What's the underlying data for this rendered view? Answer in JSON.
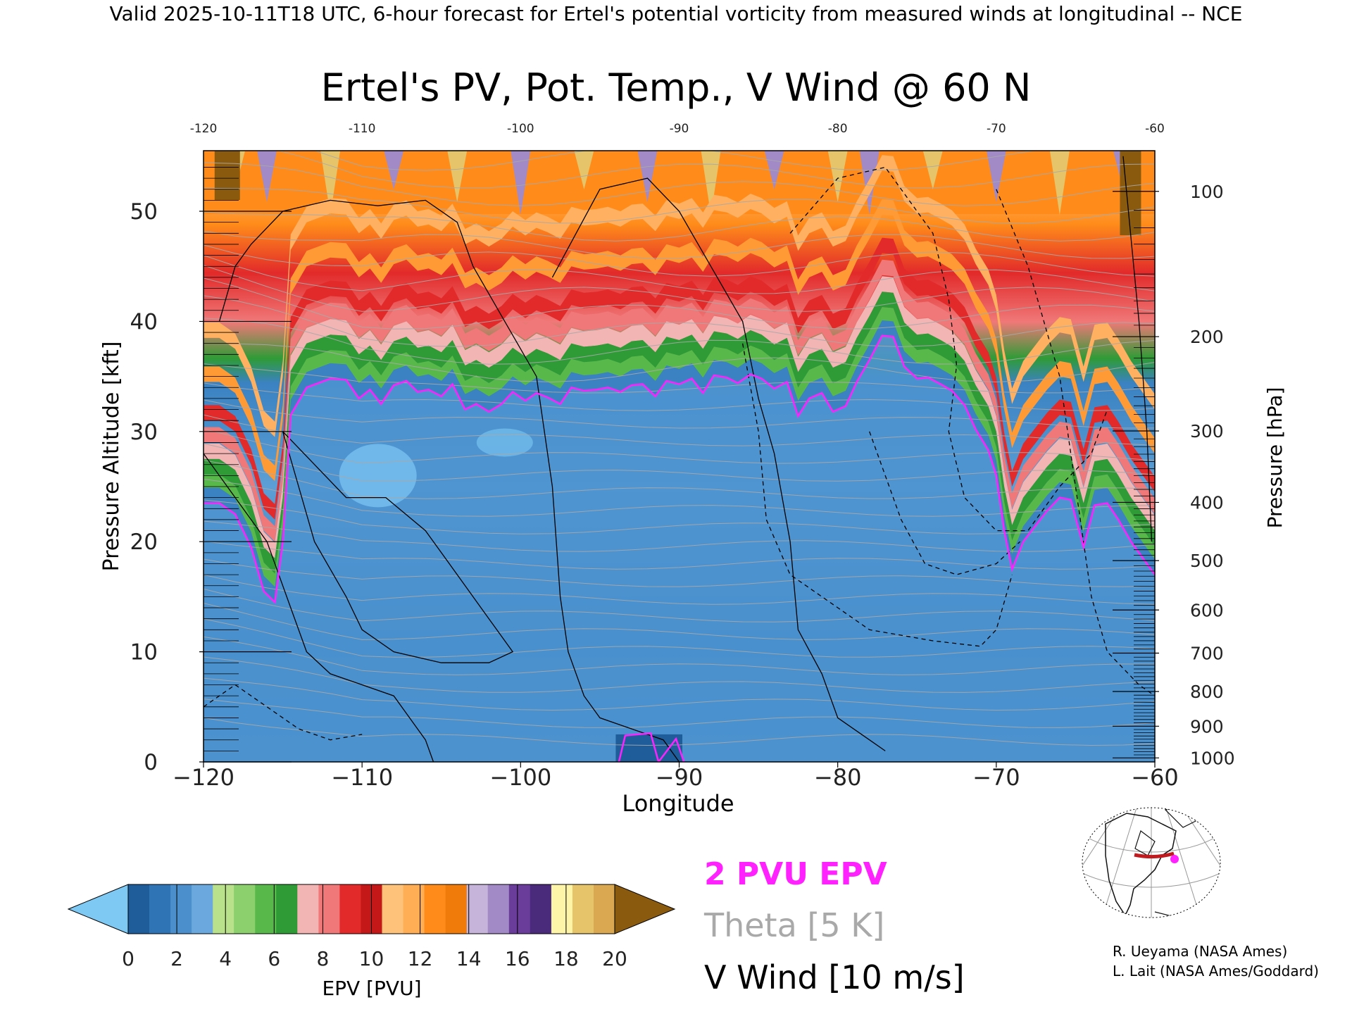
{
  "header": {
    "valid_line": "Valid 2025-10-11T18 UTC, 6-hour forecast for Ertel's potential vorticity from measured winds at longitudinal -- NCE"
  },
  "chart_data": {
    "type": "heatmap",
    "title": "Ertel's PV, Pot. Temp., V Wind @ 60 N",
    "xlabel": "Longitude",
    "ylabel": "Pressure Altitude [kft]",
    "y2label": "Pressure [hPa]",
    "x_ticks": [
      "−120",
      "−110",
      "−100",
      "−90",
      "−80",
      "−70",
      "−60"
    ],
    "x_tick_values": [
      -120,
      -110,
      -100,
      -90,
      -80,
      -70,
      -60
    ],
    "x_top_ticks": [
      "-120",
      "-110",
      "-100",
      "-90",
      "-80",
      "-70",
      "-60"
    ],
    "y_ticks": [
      "0",
      "10",
      "20",
      "30",
      "40",
      "50"
    ],
    "y_tick_values": [
      0,
      10,
      20,
      30,
      40,
      50
    ],
    "pressure_ticks": [
      "100",
      "200",
      "300",
      "400",
      "500",
      "600",
      "700",
      "800",
      "900",
      "1000"
    ],
    "pressure_tick_values": [
      100,
      200,
      300,
      400,
      500,
      600,
      700,
      800,
      900,
      1000
    ],
    "xlim": [
      -120,
      -60
    ],
    "ylim": [
      0,
      55.5
    ],
    "tropopause_2pvu_kft": {
      "x": [
        -120,
        -119,
        -118,
        -117,
        -116.2,
        -115.5,
        -115,
        -114.5,
        -113.5,
        -112,
        -111,
        -110.2,
        -109.5,
        -108.8,
        -108,
        -107.2,
        -106.5,
        -105.8,
        -105,
        -104.3,
        -103.5,
        -102.8,
        -102,
        -101.2,
        -100.5,
        -99.7,
        -99,
        -98.3,
        -97.5,
        -96.8,
        -96,
        -95.2,
        -94.5,
        -93.7,
        -93,
        -92.3,
        -91.5,
        -90.8,
        -90,
        -89.2,
        -88.5,
        -87.8,
        -87,
        -86.3,
        -85.5,
        -84.8,
        -84,
        -83.2,
        -82.5,
        -81.8,
        -81,
        -80.3,
        -79.5,
        -78.8,
        -78,
        -77.2,
        -76.5,
        -75.8,
        -75,
        -74.3,
        -73.5,
        -72.8,
        -72,
        -71.3,
        -70.5,
        -70,
        -69.5,
        -69,
        -68.3,
        -67.5,
        -66.8,
        -66,
        -65.3,
        -64.5,
        -63.8,
        -63,
        -62.3,
        -61.5,
        -60.8,
        -60
      ],
      "y": [
        23.5,
        23.5,
        22.5,
        19.5,
        15.5,
        14.5,
        20,
        31.5,
        34,
        34.8,
        34.7,
        33,
        33.8,
        32.5,
        34.2,
        34.6,
        33.6,
        33.8,
        33.2,
        34.3,
        32,
        32.5,
        31.8,
        32.5,
        33.6,
        32.8,
        33.5,
        33.1,
        32.5,
        34,
        33.7,
        33.8,
        34,
        33.6,
        34.2,
        34.3,
        33.2,
        34.6,
        34.3,
        34.8,
        33.5,
        35.1,
        34.9,
        34.4,
        35.2,
        34.8,
        33.9,
        34.5,
        31.4,
        33,
        33.5,
        31.8,
        32.3,
        34.5,
        36.5,
        38.7,
        38.6,
        35.9,
        34.8,
        34.9,
        34.3,
        33.7,
        32.4,
        30.2,
        28.3,
        26,
        21,
        17.5,
        20,
        21.5,
        22.8,
        24,
        23.8,
        19.5,
        23.3,
        23.5,
        22,
        20,
        18.6,
        17
      ],
      "extra_segment": {
        "x": [
          -93.8,
          -93.4,
          -91.8,
          -91.3,
          -90.2,
          -89.7
        ],
        "y": [
          0,
          2.4,
          2.6,
          0,
          2.1,
          0
        ]
      }
    }
  },
  "colorbar": {
    "label": "EPV [PVU]",
    "tick_labels": [
      "0",
      "2",
      "4",
      "6",
      "8",
      "10",
      "12",
      "14",
      "16",
      "18",
      "20"
    ],
    "tick_values": [
      0,
      2,
      4,
      6,
      8,
      10,
      12,
      14,
      16,
      18,
      20
    ],
    "colors": [
      "#1f5d9a",
      "#2f74b4",
      "#4b8fcc",
      "#6aa8dd",
      "#b9e08a",
      "#8ccf6d",
      "#58b84a",
      "#2f9b36",
      "#f3b4b4",
      "#f07878",
      "#e22a2a",
      "#c41818",
      "#ffc27a",
      "#ffae55",
      "#ff8c1a",
      "#f07a0a",
      "#c7b4da",
      "#a28ac6",
      "#6a3d9a",
      "#4a2a7a",
      "#fff5a8",
      "#e6c56a",
      "#d9a850"
    ],
    "below_color": "#7ec8f4",
    "above_color": "#8a5a0f"
  },
  "legend": {
    "pvu_label": "2 PVU EPV",
    "pvu_color": "#ff22ff",
    "theta_label": "Theta [5 K]",
    "theta_color": "#a9a9a9",
    "wind_label": "V Wind [10 m/s]",
    "wind_color": "#000000"
  },
  "credits": {
    "line1": "R. Ueyama (NASA Ames)",
    "line2": "L. Lait (NASA Ames/Goddard)"
  },
  "inset_map": {
    "route_color": "#c0191e",
    "marker_color": "#ff22ff"
  }
}
